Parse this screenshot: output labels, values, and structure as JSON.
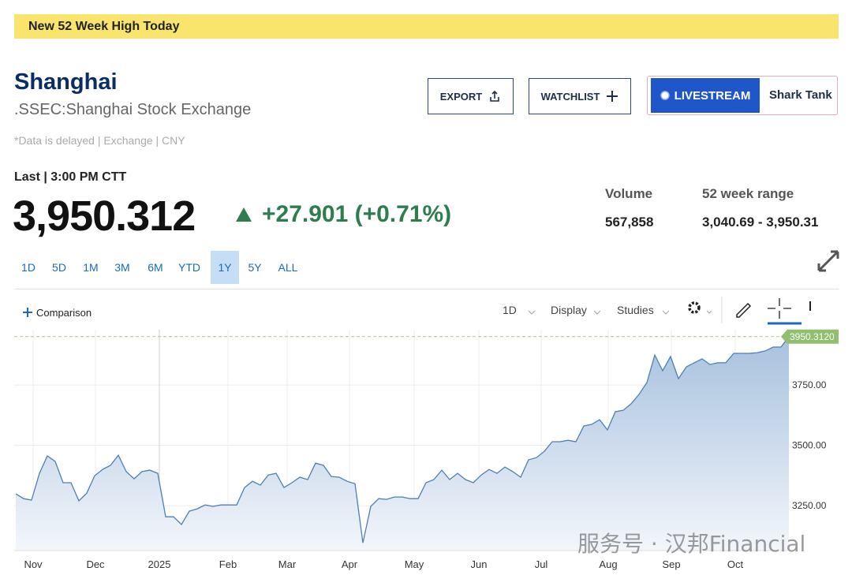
{
  "banner": "New 52 Week High Today",
  "header": {
    "name": "Shanghai",
    "exchange": ".SSEC:Shanghai Stock Exchange",
    "note": "*Data is delayed | Exchange | CNY"
  },
  "buttons": {
    "export": "EXPORT",
    "watchlist": "WATCHLIST",
    "livestream": "LIVESTREAM",
    "show": "Shark Tank"
  },
  "quote": {
    "last_label": "Last | 3:00 PM CTT",
    "price": "3,950.312",
    "change": "+27.901 (+0.71%)"
  },
  "stats": [
    {
      "label": "Volume",
      "value": "567,858"
    },
    {
      "label": "52 week range",
      "value": "3,040.69 - 3,950.31"
    }
  ],
  "ranges": [
    "1D",
    "5D",
    "1M",
    "3M",
    "6M",
    "YTD",
    "1Y",
    "5Y",
    "ALL"
  ],
  "active_range": 6,
  "toolbar": {
    "comparison": "Comparison",
    "interval": "1D",
    "display": "Display",
    "studies": "Studies"
  },
  "watermark": "服务号 · 汉邦Financial",
  "chart_data": {
    "type": "line",
    "color": "#4d7fb5",
    "values": [
      3299,
      3279,
      3273,
      3384,
      3456,
      3433,
      3345,
      3345,
      3270,
      3302,
      3374,
      3400,
      3417,
      3459,
      3391,
      3361,
      3391,
      3397,
      3384,
      3204,
      3204,
      3172,
      3227,
      3237,
      3253,
      3247,
      3253,
      3253,
      3253,
      3325,
      3351,
      3335,
      3377,
      3384,
      3325,
      3345,
      3368,
      3358,
      3426,
      3417,
      3371,
      3368,
      3351,
      3341,
      3096,
      3247,
      3279,
      3276,
      3286,
      3286,
      3279,
      3279,
      3345,
      3358,
      3397,
      3358,
      3384,
      3358,
      3345,
      3377,
      3400,
      3384,
      3410,
      3391,
      3368,
      3440,
      3449,
      3475,
      3515,
      3515,
      3521,
      3515,
      3580,
      3587,
      3606,
      3564,
      3639,
      3645,
      3672,
      3711,
      3760,
      3874,
      3809,
      3868,
      3776,
      3825,
      3842,
      3858,
      3835,
      3842,
      3842,
      3881,
      3881,
      3881,
      3884,
      3891,
      3907,
      3907,
      3950.312
    ],
    "xlim": [
      0,
      98
    ],
    "xticks": [
      {
        "value": 2.2,
        "label": "Nov"
      },
      {
        "value": 10.1,
        "label": "Dec"
      },
      {
        "value": 18.2,
        "label": "2025"
      },
      {
        "value": 26.9,
        "label": "Feb"
      },
      {
        "value": 34.4,
        "label": "Mar"
      },
      {
        "value": 42.3,
        "label": "Apr"
      },
      {
        "value": 50.5,
        "label": "May"
      },
      {
        "value": 58.7,
        "label": "Jun"
      },
      {
        "value": 66.6,
        "label": "Jul"
      },
      {
        "value": 75.1,
        "label": "Aug"
      },
      {
        "value": 83.1,
        "label": "Sep"
      },
      {
        "value": 91.2,
        "label": "Oct"
      }
    ],
    "ylim": [
      3064,
      3979
    ],
    "yticks": [
      {
        "value": 3250,
        "label": "3250.00"
      },
      {
        "value": 3500,
        "label": "3500.00"
      },
      {
        "value": 3750,
        "label": "3750.00"
      }
    ],
    "last_price": {
      "value": 3950.312,
      "label": "3950.3120"
    },
    "grid": true
  }
}
